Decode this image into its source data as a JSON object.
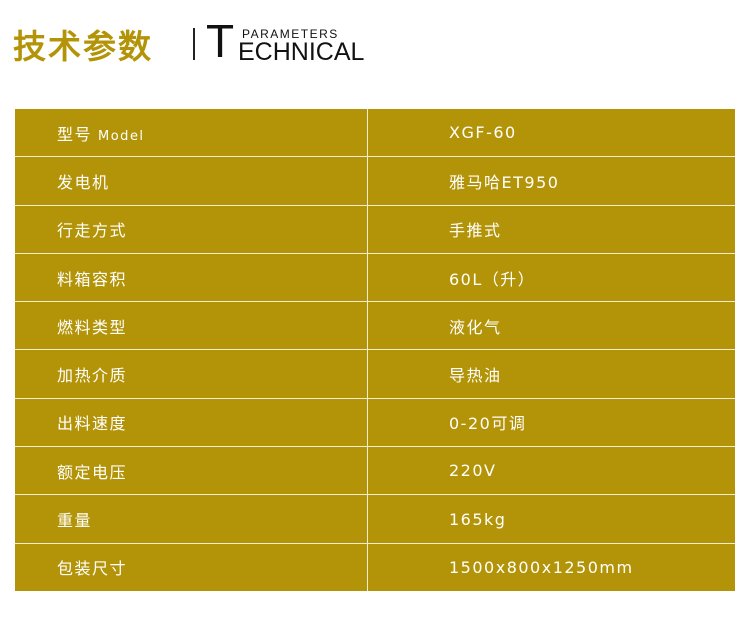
{
  "header": {
    "title_cn": "技术参数",
    "title_en_initial": "T",
    "title_en_rest": "ECHNICAL",
    "subtitle": "PARAMETERS"
  },
  "rows": [
    {
      "label": "型号",
      "label_en": "Model",
      "value": "XGF-60"
    },
    {
      "label": "发电机",
      "value": "雅马哈ET950"
    },
    {
      "label": "行走方式",
      "value": "手推式"
    },
    {
      "label": "料箱容积",
      "value": "60L（升）"
    },
    {
      "label": "燃料类型",
      "value": "液化气"
    },
    {
      "label": "加热介质",
      "value": "导热油"
    },
    {
      "label": "出料速度",
      "value": "0-20可调"
    },
    {
      "label": "额定电压",
      "value": "220V"
    },
    {
      "label": "重量",
      "value": "165kg"
    },
    {
      "label": "包装尺寸",
      "value": "1500x800x1250mm"
    }
  ],
  "colors": {
    "accent": "#b39408"
  }
}
